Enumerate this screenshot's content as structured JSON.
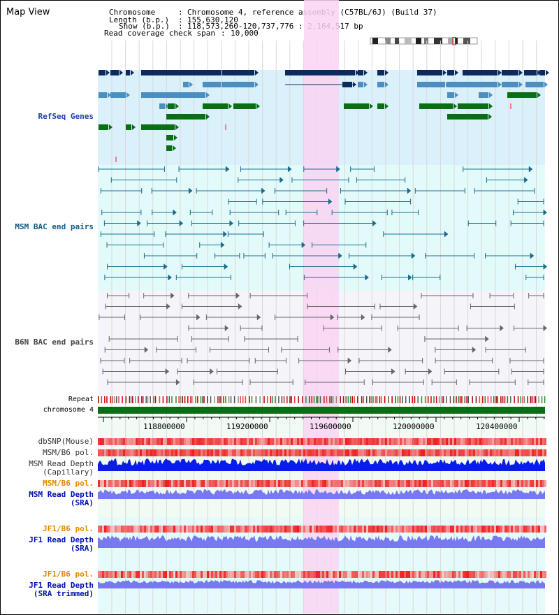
{
  "page_title": "Map View",
  "header": {
    "chromosome_key": "Chromosome",
    "chromosome_val": "Chromosome 4, reference assembly (C57BL/6J) (Build 37)",
    "length_key": "Length (b.p.)",
    "length_val": "155,630,120",
    "show_key": "Show (b.p.)",
    "show_val": "118,573,260-120,737,776 : 2,164,517 bp",
    "coverage_key": "Read coverage check span",
    "coverage_val": "10,000"
  },
  "tracks": {
    "refseq": "RefSeq Genes",
    "msm_bac": "MSM BAC end pairs",
    "b6n_bac": "B6N BAC end pairs",
    "repeat": "Repeat",
    "chromosome": "chromosome 4",
    "dbsnp": "dbSNP(Mouse)",
    "msm_b6_pol_1": "MSM/B6 pol.",
    "msm_depth_cap_1": "MSM Read Depth",
    "msm_depth_cap_2": "(Capillary)",
    "msm_b6_pol_2": "MSM/B6 pol.",
    "msm_depth_sra_1": "MSM Read Depth",
    "msm_depth_sra_2": "(SRA)",
    "jf1_b6_pol_1": "JF1/B6 pol.",
    "jf1_depth_sra_1": "JF1 Read Depth",
    "jf1_depth_sra_2": "(SRA)",
    "jf1_b6_pol_2": "JF1/B6 pol.",
    "jf1_depth_trim_1": "JF1 Read Depth",
    "jf1_depth_trim_2": "(SRA trimmed)"
  },
  "axis": {
    "ticks": [
      "118800000",
      "119200000",
      "119600000",
      "120000000",
      "120400000"
    ]
  },
  "colors": {
    "highlight": "#f9d4f2",
    "refseq_bg": "#daf0fa",
    "msm_bg": "#e3fafb",
    "b6n_bg": "#f4f4fa",
    "gene_dark": "#0d2a5e",
    "gene_light": "#4a8fc0",
    "gene_green": "#0a6e14",
    "msm_line": "#186d8c",
    "b6n_line": "#666666",
    "chrom_bar": "#0a6e14",
    "depth_blue": "#0a1ce8",
    "depth_light": "#7878f0"
  }
}
